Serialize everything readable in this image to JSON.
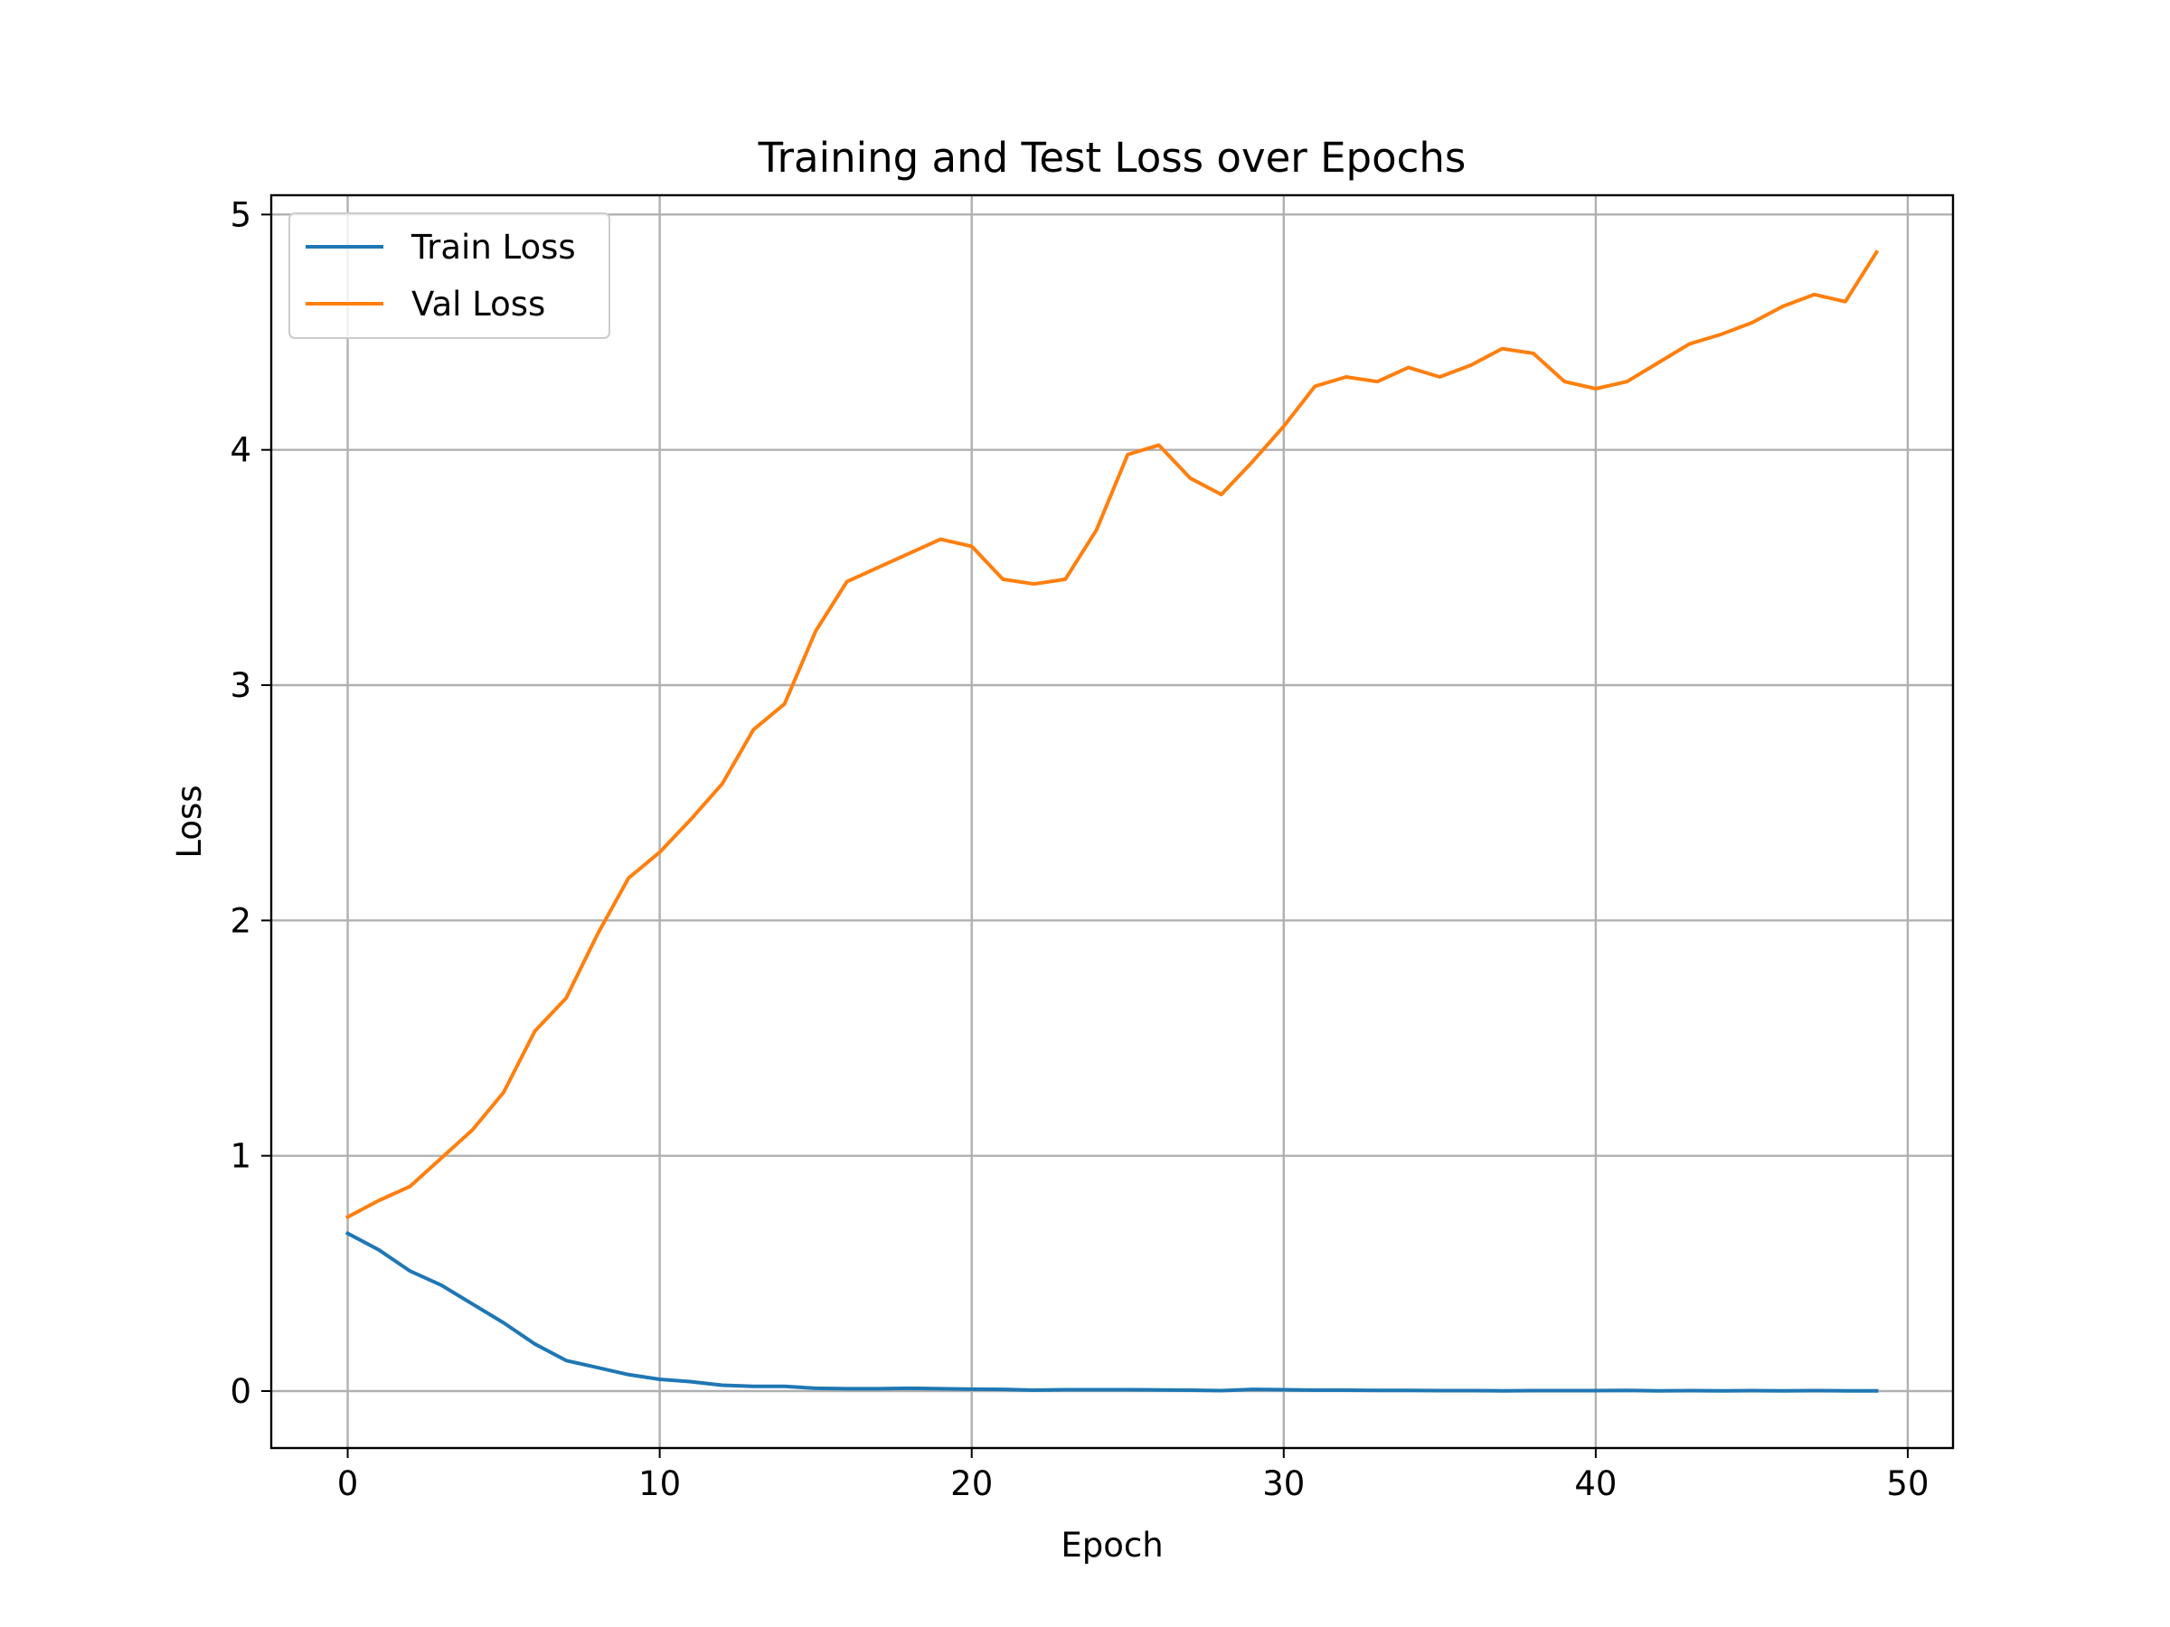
{
  "chart_data": {
    "type": "line",
    "title": "Training and Test Loss over Epochs",
    "xlabel": "Epoch",
    "ylabel": "Loss",
    "xlim": [
      -2.45,
      51.45
    ],
    "ylim": [
      -0.242,
      5.082
    ],
    "xticks": [
      0,
      10,
      20,
      30,
      40,
      50
    ],
    "yticks": [
      0,
      1,
      2,
      3,
      4,
      5
    ],
    "grid": true,
    "legend_position": "upper-left",
    "series": [
      {
        "name": "Train Loss",
        "color": "#1f77b4",
        "x": [
          0,
          1,
          2,
          3,
          4,
          5,
          6,
          7,
          8,
          9,
          10,
          11,
          12,
          13,
          14,
          15,
          16,
          17,
          18,
          19,
          20,
          21,
          22,
          23,
          24,
          25,
          26,
          27,
          28,
          29,
          30,
          31,
          32,
          33,
          34,
          35,
          36,
          37,
          38,
          39,
          40,
          41,
          42,
          43,
          44,
          45,
          46,
          47,
          48,
          49
        ],
        "values": [
          0.67,
          0.6,
          0.51,
          0.45,
          0.37,
          0.29,
          0.2,
          0.13,
          0.1,
          0.07,
          0.05,
          0.04,
          0.025,
          0.02,
          0.02,
          0.012,
          0.01,
          0.01,
          0.012,
          0.01,
          0.008,
          0.007,
          0.004,
          0.006,
          0.006,
          0.006,
          0.005,
          0.004,
          0.002,
          0.007,
          0.006,
          0.004,
          0.004,
          0.003,
          0.003,
          0.002,
          0.002,
          0.001,
          0.002,
          0.002,
          0.002,
          0.003,
          0.001,
          0.002,
          0.001,
          0.002,
          0.001,
          0.002,
          0.001,
          0.001
        ]
      },
      {
        "name": "Val Loss",
        "color": "#ff7f0e",
        "x": [
          0,
          1,
          2,
          3,
          4,
          5,
          6,
          7,
          8,
          9,
          10,
          11,
          12,
          13,
          14,
          15,
          16,
          17,
          18,
          19,
          20,
          21,
          22,
          23,
          24,
          25,
          26,
          27,
          28,
          29,
          30,
          31,
          32,
          33,
          34,
          35,
          36,
          37,
          38,
          39,
          40,
          41,
          42,
          43,
          44,
          45,
          46,
          47,
          48,
          49
        ],
        "values": [
          0.74,
          0.81,
          0.87,
          0.99,
          1.11,
          1.27,
          1.53,
          1.67,
          1.94,
          2.18,
          2.29,
          2.43,
          2.58,
          2.81,
          2.92,
          3.23,
          3.44,
          3.5,
          3.56,
          3.62,
          3.59,
          3.45,
          3.43,
          3.45,
          3.66,
          3.98,
          4.02,
          3.88,
          3.81,
          3.95,
          4.1,
          4.27,
          4.31,
          4.29,
          4.35,
          4.31,
          4.36,
          4.43,
          4.41,
          4.29,
          4.26,
          4.29,
          4.37,
          4.45,
          4.49,
          4.54,
          4.61,
          4.66,
          4.63,
          4.84
        ]
      }
    ]
  }
}
